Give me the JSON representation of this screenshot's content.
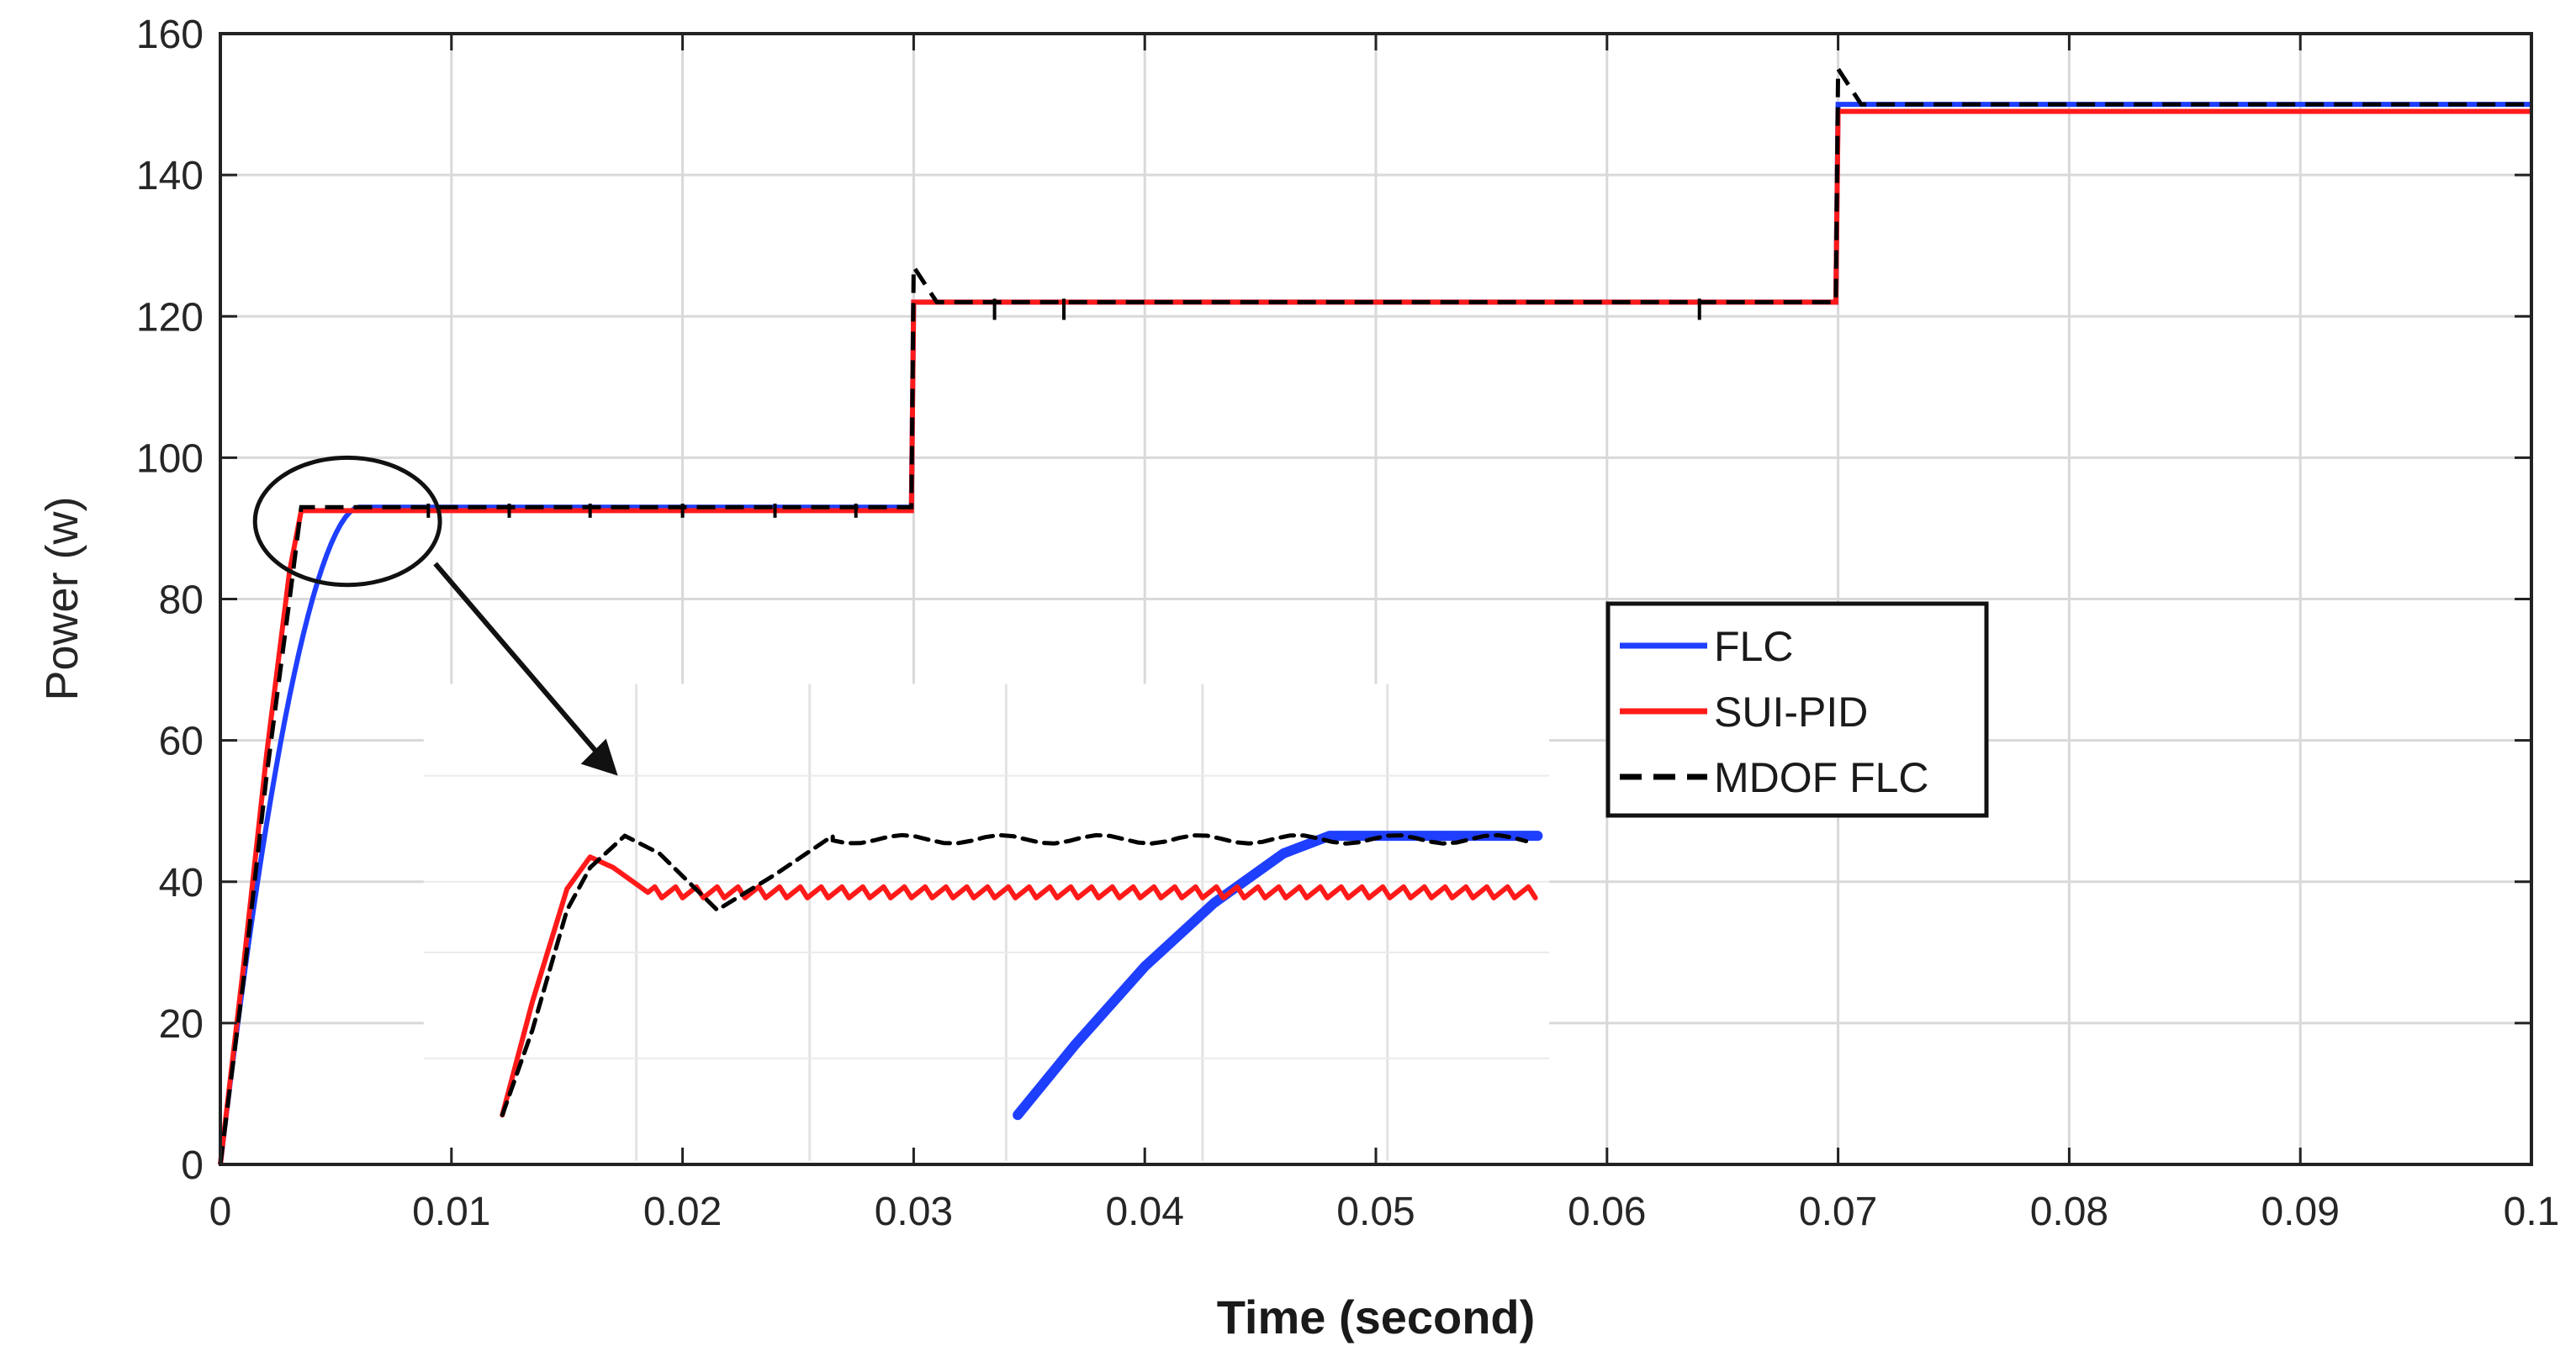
{
  "chart_data": {
    "type": "line",
    "title": "",
    "xlabel": "Time (second)",
    "ylabel": "Power (w)",
    "xlim": [
      0,
      0.1
    ],
    "ylim": [
      0,
      160
    ],
    "x_ticks": [
      0,
      0.01,
      0.02,
      0.03,
      0.04,
      0.05,
      0.06,
      0.07,
      0.08,
      0.09,
      0.1
    ],
    "x_tick_labels": [
      "0",
      "0.01",
      "0.02",
      "0.03",
      "0.04",
      "0.05",
      "0.06",
      "0.07",
      "0.08",
      "0.09",
      "0.1"
    ],
    "y_ticks": [
      0,
      20,
      40,
      60,
      80,
      100,
      120,
      140,
      160
    ],
    "y_tick_labels": [
      "0",
      "20",
      "40",
      "60",
      "80",
      "100",
      "120",
      "140",
      "160"
    ],
    "grid": true,
    "legend_position": "center-right",
    "series": [
      {
        "name": "FLC",
        "color": "#1f3fff",
        "style": "solid",
        "x": [
          0,
          0.001,
          0.002,
          0.003,
          0.004,
          0.005,
          0.006,
          0.0299,
          0.03,
          0.0699,
          0.07,
          0.1
        ],
        "y": [
          0,
          25,
          50,
          68,
          80,
          88,
          93,
          93,
          122,
          122,
          150,
          150
        ]
      },
      {
        "name": "SUI-PID",
        "color": "#ff1a1a",
        "style": "solid",
        "x": [
          0,
          0.001,
          0.002,
          0.003,
          0.0035,
          0.0299,
          0.03,
          0.0699,
          0.07,
          0.1
        ],
        "y": [
          0,
          28,
          58,
          84,
          92.5,
          92.5,
          122,
          122,
          149,
          149
        ]
      },
      {
        "name": "MDOF FLC",
        "color": "#000000",
        "style": "dashed",
        "x": [
          0,
          0.001,
          0.002,
          0.003,
          0.0035,
          0.0299,
          0.03,
          0.031,
          0.0699,
          0.07,
          0.071,
          0.1
        ],
        "y": [
          0,
          26,
          55,
          80,
          93,
          93,
          127,
          122,
          122,
          155,
          150,
          150
        ]
      }
    ],
    "inset": {
      "zoom_region_x": [
        0.0,
        0.0095
      ],
      "zoom_region_y": [
        80,
        100
      ],
      "series": [
        {
          "name": "FLC",
          "color": "#1f3fff",
          "x": [
            0.0345,
            0.037,
            0.04,
            0.043,
            0.046,
            0.048,
            0.057
          ],
          "y": [
            7,
            17,
            28,
            37,
            44,
            46.5,
            46.5
          ]
        },
        {
          "name": "SUI-PID",
          "color": "#ff1a1a",
          "x": [
            0.0122,
            0.0135,
            0.015,
            0.016,
            0.017,
            0.0185,
            0.057
          ],
          "y": [
            7,
            23,
            39,
            43.5,
            42,
            38.5,
            38.5
          ]
        },
        {
          "name": "MDOF FLC",
          "color": "#000000",
          "x": [
            0.0122,
            0.0135,
            0.015,
            0.016,
            0.0175,
            0.019,
            0.0215,
            0.024,
            0.0265,
            0.057
          ],
          "y": [
            7,
            19,
            36,
            42,
            46.5,
            44,
            36,
            41,
            46.5,
            46
          ]
        }
      ]
    }
  }
}
